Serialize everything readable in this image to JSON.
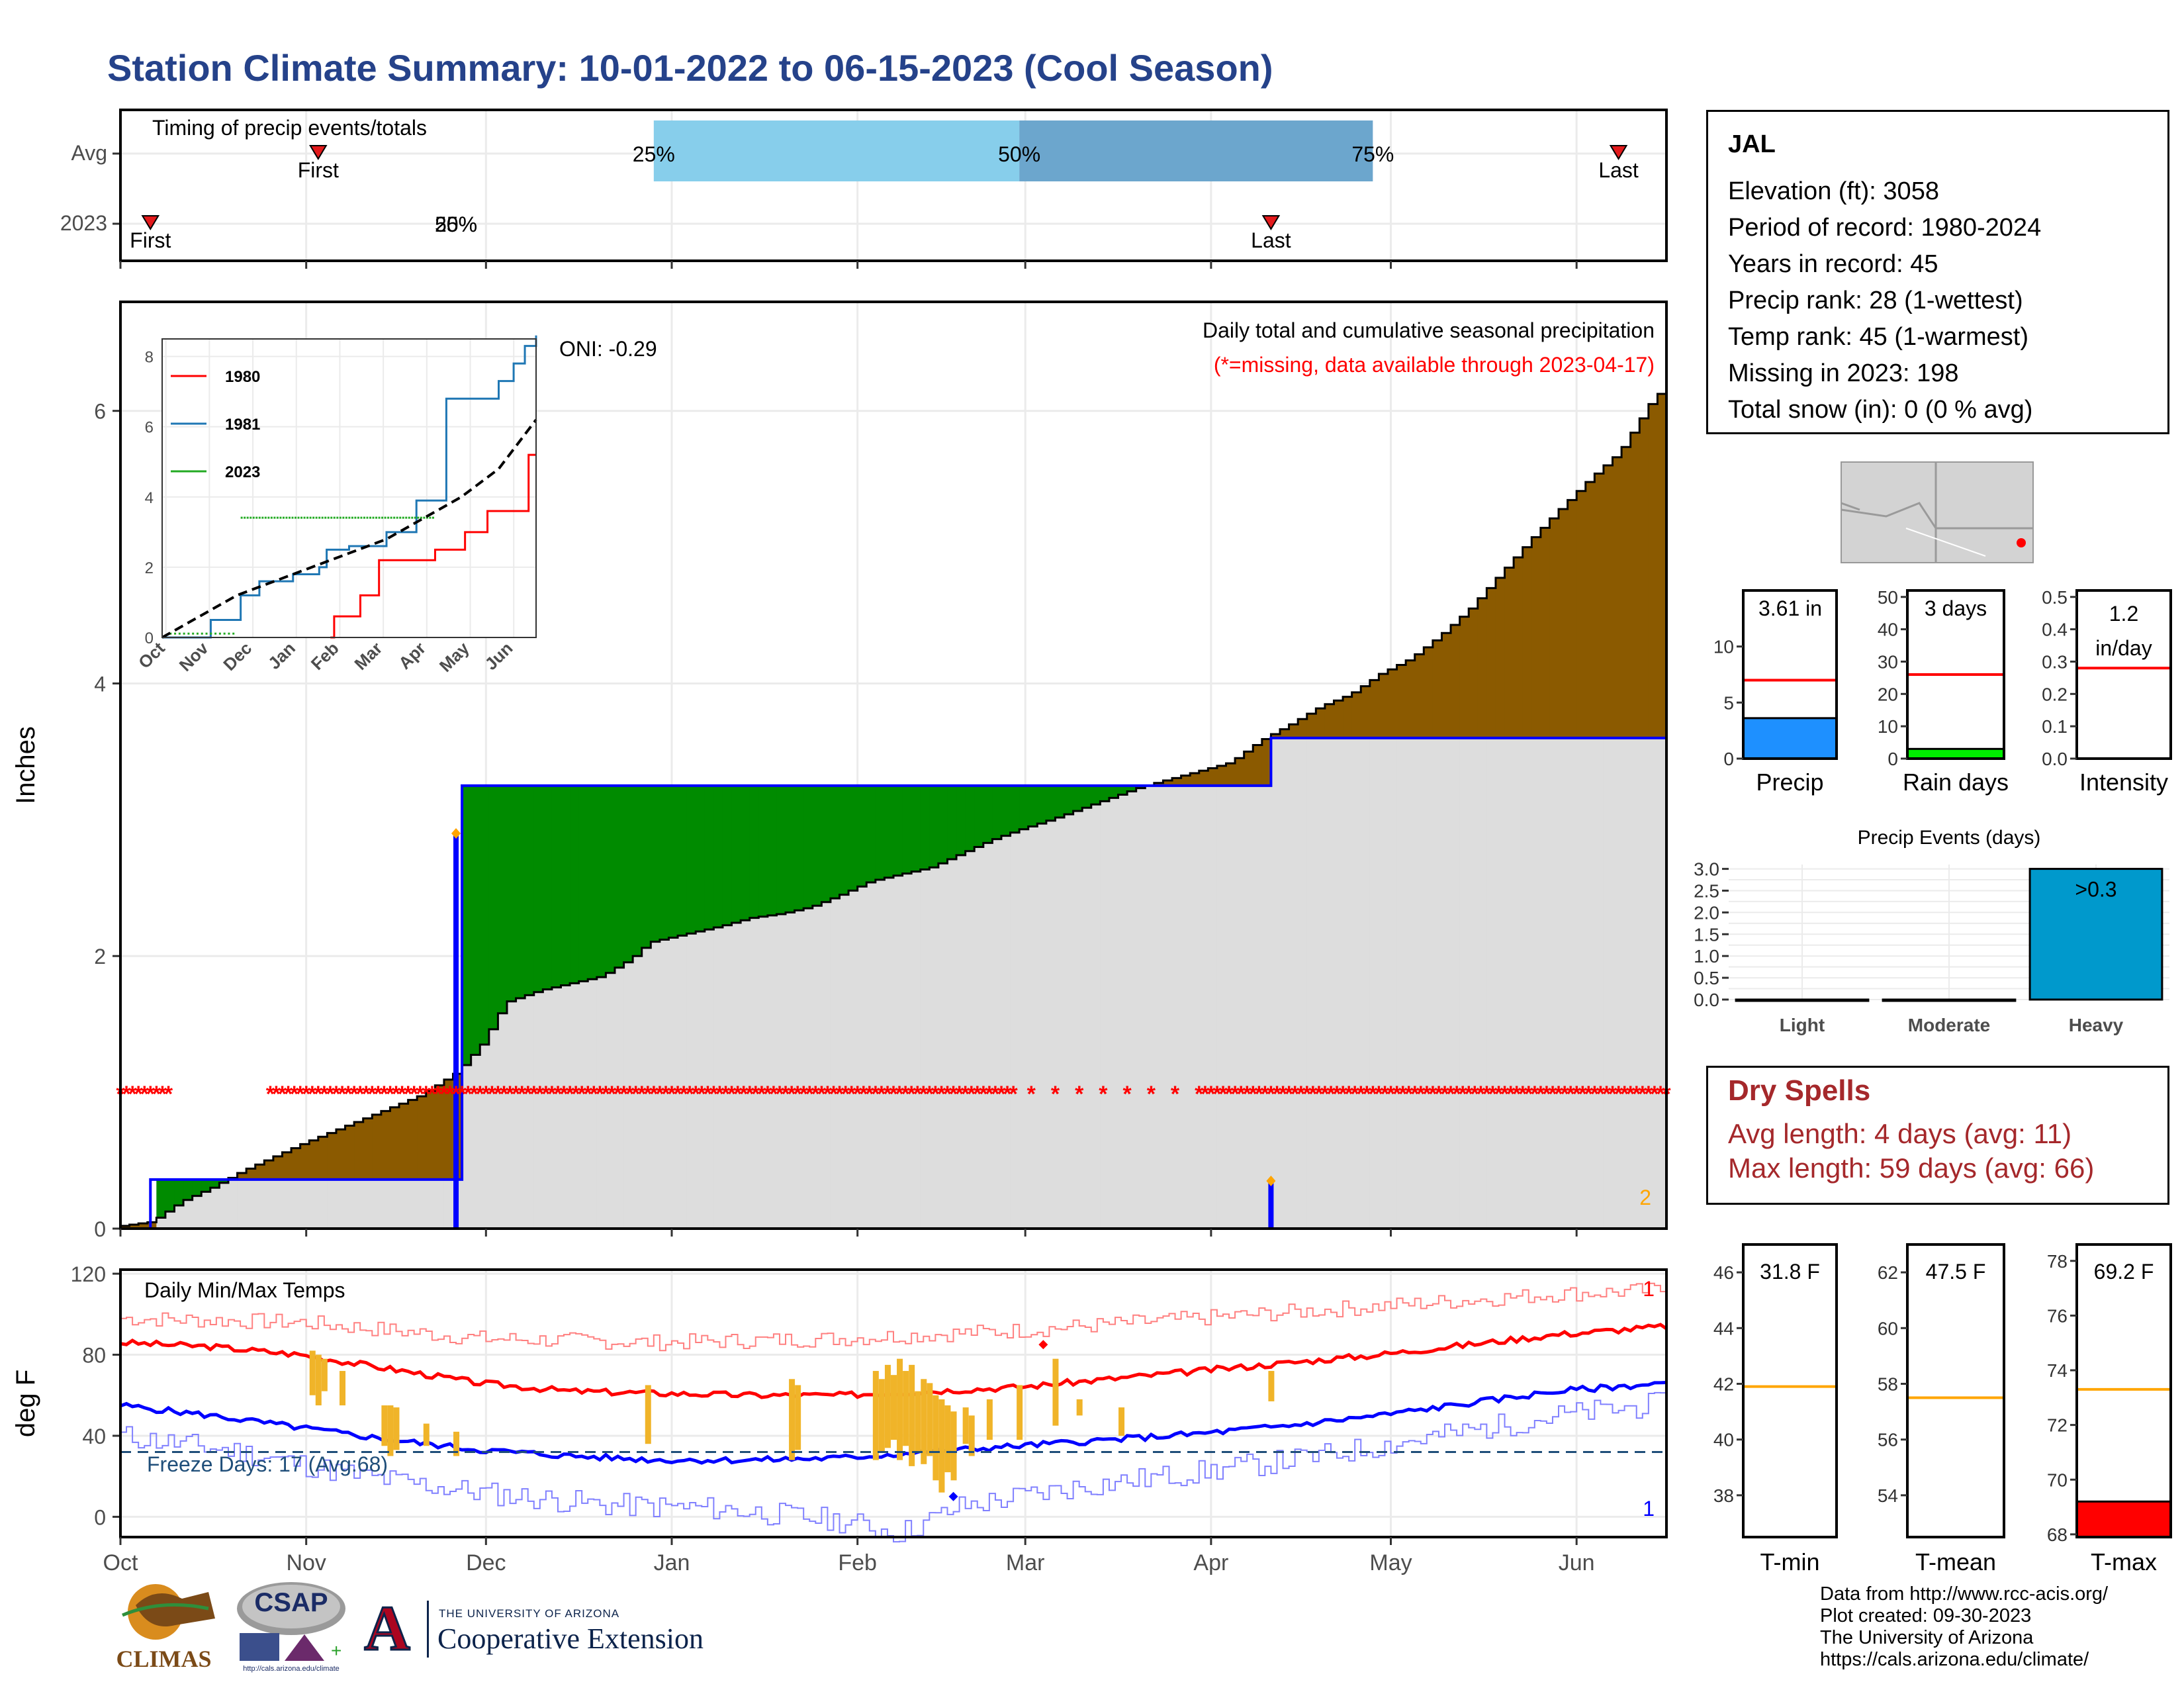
{
  "title": "Station Climate Summary: 10-01-2022 to 06-15-2023 (Cool Season)",
  "station": {
    "name": "JAL",
    "lines": [
      "Elevation (ft): 3058",
      "Period of record: 1980-2024",
      "Years in record: 45",
      "Precip rank: 28 (1-wettest)",
      "Temp rank: 45 (1-warmest)",
      "Missing in 2023: 198",
      "Total snow (in): 0 (0 % avg)"
    ]
  },
  "dry_spells": {
    "title": "Dry Spells",
    "lines": [
      "Avg length: 4 days (avg: 11)",
      "Max length: 59 days (avg: 66)"
    ]
  },
  "credits": [
    "Data from http://www.rcc-acis.org/",
    "Plot created: 09-30-2023",
    "The University of Arizona",
    "https://cals.arizona.edu/climate/"
  ],
  "logos": {
    "climas": "CLIMAS",
    "csap": "CSAP",
    "csap_url": "http://cals.arizona.edu/climate",
    "ua_top": "THE UNIVERSITY OF ARIZONA",
    "ua_bottom": "Cooperative Extension",
    "ua_letter": "A"
  },
  "colors": {
    "title": "#25428a",
    "above_avg": "#8b5a00",
    "below_avg": "#008b00",
    "avg_fill": "#dddddd",
    "obs_line": "#0000ff",
    "missing": "#ff0000",
    "tmax": "#ff0000",
    "tmin": "#0000ff",
    "anomaly": "#f0b429",
    "precip_bar": "#1e90ff",
    "raindays_bar": "#00ee00",
    "events_bar": "#0099cc",
    "avg_line": "#ff0000",
    "temp_avg_line": "#ffa500",
    "tmax_bar": "#ff0000",
    "q25_50": "#87ceeb",
    "q50_75": "#6ca6cd"
  },
  "months": [
    "Oct",
    "Nov",
    "Dec",
    "Jan",
    "Feb",
    "Mar",
    "Apr",
    "May",
    "Jun"
  ],
  "timing": {
    "title": "Timing of precip events/totals",
    "row_labels": [
      "Avg",
      "2023"
    ],
    "avg": {
      "first_day": 33,
      "last_day": 250,
      "p25_day": 89,
      "p50_day": 150,
      "p75_day": 209
    },
    "obs2023": {
      "first_day": 5,
      "last_day": 192,
      "pct_label_a": "25%",
      "pct_label_b": "50%"
    },
    "labels": {
      "first": "First",
      "last": "Last",
      "p25": "25%",
      "p50": "50%",
      "p75": "75%"
    }
  },
  "chart_data": [
    {
      "type": "area",
      "title": "Daily total and cumulative seasonal precipitation",
      "subtitle": "(*=missing, data available through 2023-04-17)",
      "ylabel": "Inches",
      "ylim": [
        0,
        6.8
      ],
      "yticks": [
        0,
        2,
        4,
        6
      ],
      "xlim_days": [
        0,
        258
      ],
      "oni_label": "ONI: -0.29",
      "count_label": "2",
      "avg_cumulative": [
        [
          0,
          0.02
        ],
        [
          5,
          0.05
        ],
        [
          10,
          0.2
        ],
        [
          15,
          0.3
        ],
        [
          20,
          0.42
        ],
        [
          30,
          0.62
        ],
        [
          40,
          0.8
        ],
        [
          50,
          0.98
        ],
        [
          56,
          1.15
        ],
        [
          60,
          1.35
        ],
        [
          62,
          1.5
        ],
        [
          63,
          1.58
        ],
        [
          64,
          1.66
        ],
        [
          70,
          1.75
        ],
        [
          75,
          1.8
        ],
        [
          80,
          1.85
        ],
        [
          85,
          1.98
        ],
        [
          88,
          2.1
        ],
        [
          95,
          2.17
        ],
        [
          100,
          2.22
        ],
        [
          105,
          2.28
        ],
        [
          110,
          2.31
        ],
        [
          115,
          2.36
        ],
        [
          120,
          2.45
        ],
        [
          125,
          2.55
        ],
        [
          130,
          2.6
        ],
        [
          135,
          2.65
        ],
        [
          140,
          2.75
        ],
        [
          145,
          2.85
        ],
        [
          150,
          2.93
        ],
        [
          155,
          3.0
        ],
        [
          160,
          3.08
        ],
        [
          165,
          3.16
        ],
        [
          170,
          3.24
        ],
        [
          175,
          3.3
        ],
        [
          180,
          3.36
        ],
        [
          185,
          3.42
        ],
        [
          190,
          3.58
        ],
        [
          195,
          3.7
        ],
        [
          200,
          3.83
        ],
        [
          205,
          3.92
        ],
        [
          210,
          4.07
        ],
        [
          215,
          4.18
        ],
        [
          220,
          4.35
        ],
        [
          225,
          4.55
        ],
        [
          230,
          4.8
        ],
        [
          235,
          5.05
        ],
        [
          240,
          5.28
        ],
        [
          245,
          5.5
        ],
        [
          250,
          5.7
        ],
        [
          255,
          6.05
        ],
        [
          258,
          6.2
        ]
      ],
      "obs_cumulative": [
        [
          0,
          0
        ],
        [
          4,
          0
        ],
        [
          5,
          0.36
        ],
        [
          56,
          0.36
        ],
        [
          57,
          3.25
        ],
        [
          191,
          3.25
        ],
        [
          192,
          3.6
        ],
        [
          258,
          3.6
        ]
      ],
      "daily_events": [
        {
          "day": 56,
          "value": 2.9
        },
        {
          "day": 192,
          "value": 0.35
        }
      ],
      "missing_y": 1.0,
      "missing_spans": [
        [
          0,
          8
        ],
        [
          25,
          57
        ],
        [
          58,
          258
        ]
      ]
    },
    {
      "type": "line",
      "title": "Daily Min/Max Temps",
      "ylabel": "deg F",
      "ylim": [
        -10,
        122
      ],
      "yticks": [
        0,
        40,
        80,
        120
      ],
      "freeze_line": 32,
      "freeze_label": "Freeze Days: 17 (Avg:68)",
      "rank_top": "1",
      "rank_bottom": "1",
      "tmax_avg": [
        [
          0,
          86
        ],
        [
          15,
          84
        ],
        [
          30,
          80
        ],
        [
          45,
          73
        ],
        [
          60,
          66
        ],
        [
          75,
          62
        ],
        [
          90,
          61
        ],
        [
          105,
          60
        ],
        [
          120,
          60
        ],
        [
          135,
          62
        ],
        [
          150,
          64
        ],
        [
          165,
          68
        ],
        [
          180,
          72
        ],
        [
          195,
          76
        ],
        [
          210,
          80
        ],
        [
          225,
          85
        ],
        [
          240,
          90
        ],
        [
          258,
          94
        ]
      ],
      "tmin_avg": [
        [
          0,
          55
        ],
        [
          15,
          50
        ],
        [
          30,
          44
        ],
        [
          45,
          38
        ],
        [
          60,
          33
        ],
        [
          75,
          30
        ],
        [
          90,
          28
        ],
        [
          105,
          28
        ],
        [
          120,
          29
        ],
        [
          135,
          32
        ],
        [
          150,
          35
        ],
        [
          165,
          38
        ],
        [
          180,
          41
        ],
        [
          195,
          45
        ],
        [
          210,
          50
        ],
        [
          225,
          56
        ],
        [
          240,
          62
        ],
        [
          258,
          66
        ]
      ],
      "tmax_record": [
        [
          0,
          98
        ],
        [
          30,
          96
        ],
        [
          60,
          88
        ],
        [
          90,
          86
        ],
        [
          120,
          88
        ],
        [
          150,
          92
        ],
        [
          180,
          98
        ],
        [
          210,
          104
        ],
        [
          240,
          110
        ],
        [
          258,
          112
        ]
      ],
      "tmin_record": [
        [
          0,
          40
        ],
        [
          20,
          32
        ],
        [
          40,
          20
        ],
        [
          60,
          12
        ],
        [
          80,
          6
        ],
        [
          100,
          4
        ],
        [
          120,
          -2
        ],
        [
          130,
          -8
        ],
        [
          140,
          5
        ],
        [
          160,
          15
        ],
        [
          180,
          22
        ],
        [
          200,
          30
        ],
        [
          220,
          40
        ],
        [
          240,
          50
        ],
        [
          258,
          56
        ]
      ],
      "obs_tmax_point": {
        "day": 154,
        "value": 85
      },
      "obs_tmin_point": {
        "day": 139,
        "value": 10
      },
      "anomalies": [
        [
          32,
          82,
          60
        ],
        [
          33,
          80,
          55
        ],
        [
          34,
          78,
          62
        ],
        [
          37,
          72,
          55
        ],
        [
          44,
          55,
          35
        ],
        [
          45,
          55,
          30
        ],
        [
          46,
          54,
          33
        ],
        [
          51,
          46,
          35
        ],
        [
          56,
          42,
          30
        ],
        [
          88,
          65,
          36
        ],
        [
          112,
          68,
          28
        ],
        [
          113,
          65,
          33
        ],
        [
          126,
          72,
          28
        ],
        [
          127,
          68,
          32
        ],
        [
          128,
          75,
          34
        ],
        [
          129,
          70,
          38
        ],
        [
          130,
          78,
          28
        ],
        [
          131,
          72,
          35
        ],
        [
          132,
          75,
          25
        ],
        [
          133,
          62,
          32
        ],
        [
          134,
          68,
          26
        ],
        [
          135,
          66,
          30
        ],
        [
          136,
          60,
          18
        ],
        [
          137,
          58,
          12
        ],
        [
          138,
          55,
          22
        ],
        [
          139,
          52,
          18
        ],
        [
          141,
          54,
          36
        ],
        [
          142,
          50,
          30
        ],
        [
          145,
          58,
          38
        ],
        [
          150,
          65,
          38
        ],
        [
          156,
          78,
          45
        ],
        [
          160,
          58,
          50
        ],
        [
          167,
          54,
          40
        ],
        [
          192,
          72,
          57
        ]
      ]
    },
    {
      "type": "line",
      "title": "",
      "xlim": [
        0,
        1
      ],
      "ylim": [
        0,
        8.5
      ],
      "yticks": [
        0,
        2,
        4,
        6,
        8
      ],
      "x_ticklabels": [
        "Oct",
        "Nov",
        "Dec",
        "Jan",
        "Feb",
        "Mar",
        "Apr",
        "May",
        "Jun"
      ],
      "series": [
        {
          "name": "1980",
          "color": "#ff0000",
          "points": [
            [
              0.45,
              0
            ],
            [
              0.46,
              0.6
            ],
            [
              0.52,
              0.6
            ],
            [
              0.53,
              1.2
            ],
            [
              0.57,
              1.2
            ],
            [
              0.58,
              2.2
            ],
            [
              0.72,
              2.2
            ],
            [
              0.73,
              2.5
            ],
            [
              0.8,
              2.5
            ],
            [
              0.81,
              3.0
            ],
            [
              0.86,
              3.0
            ],
            [
              0.87,
              3.6
            ],
            [
              0.97,
              3.6
            ],
            [
              0.98,
              5.2
            ],
            [
              1,
              5.2
            ]
          ]
        },
        {
          "name": "1981",
          "color": "#1f77b4",
          "points": [
            [
              0,
              0
            ],
            [
              0.12,
              0
            ],
            [
              0.13,
              0.5
            ],
            [
              0.2,
              0.5
            ],
            [
              0.21,
              1.2
            ],
            [
              0.26,
              1.6
            ],
            [
              0.35,
              1.8
            ],
            [
              0.42,
              2.0
            ],
            [
              0.44,
              2.5
            ],
            [
              0.5,
              2.6
            ],
            [
              0.6,
              3.0
            ],
            [
              0.68,
              3.9
            ],
            [
              0.74,
              3.9
            ],
            [
              0.76,
              6.8
            ],
            [
              0.84,
              6.8
            ],
            [
              0.9,
              7.3
            ],
            [
              0.94,
              7.8
            ],
            [
              0.97,
              8.3
            ],
            [
              1,
              8.6
            ]
          ]
        },
        {
          "name": "2023",
          "color": "#22aa22",
          "points": [
            [
              0.02,
              0.05
            ],
            [
              0.2,
              0.05
            ],
            [
              0.21,
              3.4
            ],
            [
              0.73,
              3.4
            ]
          ]
        },
        {
          "name": "",
          "color": "#000000",
          "points": [
            [
              0,
              0
            ],
            [
              0.1,
              0.6
            ],
            [
              0.2,
              1.2
            ],
            [
              0.3,
              1.6
            ],
            [
              0.4,
              2.0
            ],
            [
              0.5,
              2.4
            ],
            [
              0.6,
              2.8
            ],
            [
              0.7,
              3.4
            ],
            [
              0.8,
              4.0
            ],
            [
              0.9,
              4.8
            ],
            [
              1,
              6.2
            ]
          ]
        }
      ]
    },
    {
      "type": "bar",
      "title": "",
      "categories": [
        "Precip",
        "Rain days",
        "Intensity"
      ],
      "panels": [
        {
          "name": "Precip",
          "label": "3.61 in",
          "value": 3.61,
          "avg": 7.0,
          "ylim": [
            0,
            15
          ],
          "yticks": [
            0,
            5,
            10
          ]
        },
        {
          "name": "Rain days",
          "label": "3 days",
          "value": 3,
          "avg": 26,
          "ylim": [
            0,
            52
          ],
          "yticks": [
            0,
            10,
            20,
            30,
            40,
            50
          ]
        },
        {
          "name": "Intensity",
          "label": "1.2 in/day",
          "value": 1.2,
          "avg": 0.28,
          "ylim": [
            0,
            0.52
          ],
          "yticks": [
            0.0,
            0.1,
            0.2,
            0.3,
            0.4,
            0.5
          ]
        }
      ]
    },
    {
      "type": "bar",
      "title": "Precip Events (days)",
      "categories": [
        "Light",
        "Moderate",
        "Heavy"
      ],
      "values": [
        0,
        0,
        3
      ],
      "bar_label": ">0.3",
      "ylim": [
        0,
        3.1
      ],
      "yticks": [
        0.0,
        0.5,
        1.0,
        1.5,
        2.0,
        2.5,
        3.0
      ]
    },
    {
      "type": "bar",
      "title": "",
      "categories": [
        "T-min",
        "T-mean",
        "T-max"
      ],
      "panels": [
        {
          "name": "T-min",
          "label": "31.8 F",
          "value": 31.8,
          "avg": 41.9,
          "ylim": [
            36.5,
            47
          ],
          "yticks": [
            38,
            40,
            42,
            44,
            46
          ]
        },
        {
          "name": "T-mean",
          "label": "47.5 F",
          "value": 47.5,
          "avg": 57.5,
          "ylim": [
            52.5,
            63
          ],
          "yticks": [
            54,
            56,
            58,
            60,
            62
          ]
        },
        {
          "name": "T-max",
          "label": "69.2 F",
          "value": 69.2,
          "avg": 73.3,
          "ylim": [
            67.9,
            78.6
          ],
          "yticks": [
            68,
            70,
            72,
            74,
            76,
            78
          ]
        }
      ]
    }
  ]
}
